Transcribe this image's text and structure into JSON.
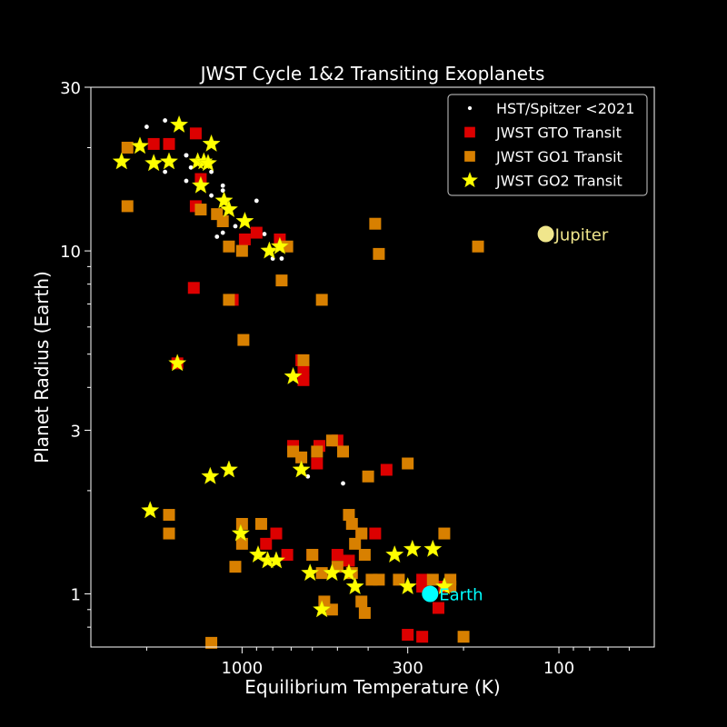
{
  "chart_data": {
    "type": "scatter",
    "title": "JWST Cycle 1&2 Transiting Exoplanets",
    "xlabel": "Equilibrium Temperature (K)",
    "ylabel": "Planet Radius (Earth)",
    "x_scale": "log",
    "x_reversed": true,
    "y_scale": "log",
    "xlim": [
      3000,
      50
    ],
    "ylim": [
      0.7,
      30
    ],
    "x_ticks": [
      1000,
      300,
      100
    ],
    "y_ticks": [
      1,
      3,
      10,
      30
    ],
    "background": "#000000",
    "legend_position": "top-right",
    "grid": false,
    "series": [
      {
        "name": "HST/Spitzer <2021",
        "marker": "point",
        "color": "#ffffff",
        "points": [
          [
            2000,
            23
          ],
          [
            1900,
            21
          ],
          [
            1750,
            24
          ],
          [
            1750,
            17
          ],
          [
            1500,
            19
          ],
          [
            1450,
            17.5
          ],
          [
            1500,
            16
          ],
          [
            1250,
            17
          ],
          [
            1150,
            15.5
          ],
          [
            1500,
            19
          ],
          [
            1050,
            11.8
          ],
          [
            900,
            14
          ],
          [
            1250,
            14.5
          ],
          [
            1200,
            11
          ],
          [
            1150,
            15
          ],
          [
            850,
            11.2
          ],
          [
            800,
            9.5
          ],
          [
            750,
            9.5
          ],
          [
            620,
            2.2
          ],
          [
            480,
            2.1
          ],
          [
            1150,
            11.3
          ]
        ]
      },
      {
        "name": "JWST GTO Transit",
        "marker": "square",
        "color": "#dd0000",
        "points": [
          [
            1400,
            22
          ],
          [
            1400,
            13.5
          ],
          [
            1420,
            7.8
          ],
          [
            1070,
            7.2
          ],
          [
            980,
            10.8
          ],
          [
            900,
            11.3
          ],
          [
            760,
            10.8
          ],
          [
            1350,
            16.2
          ],
          [
            1700,
            20.5
          ],
          [
            1900,
            20.5
          ],
          [
            1600,
            4.7
          ],
          [
            640,
            4.2
          ],
          [
            640,
            4.5
          ],
          [
            650,
            4.8
          ],
          [
            690,
            2.7
          ],
          [
            570,
            2.7
          ],
          [
            580,
            2.4
          ],
          [
            500,
            2.8
          ],
          [
            350,
            2.3
          ],
          [
            380,
            1.5
          ],
          [
            420,
            1.5
          ],
          [
            270,
            1.1
          ],
          [
            230,
            1.05
          ],
          [
            240,
            0.91
          ],
          [
            300,
            0.76
          ],
          [
            270,
            1.05
          ],
          [
            270,
            0.75
          ],
          [
            840,
            1.4
          ],
          [
            780,
            1.5
          ],
          [
            720,
            1.3
          ],
          [
            600,
            1.3
          ],
          [
            500,
            1.3
          ],
          [
            460,
            1.25
          ]
        ]
      },
      {
        "name": "JWST GO1 Transit",
        "marker": "square",
        "color": "#d88000",
        "points": [
          [
            2300,
            20
          ],
          [
            2300,
            13.5
          ],
          [
            1350,
            13.2
          ],
          [
            1200,
            12.8
          ],
          [
            1150,
            12.2
          ],
          [
            1100,
            10.3
          ],
          [
            1000,
            10
          ],
          [
            720,
            10.3
          ],
          [
            750,
            8.2
          ],
          [
            560,
            7.2
          ],
          [
            380,
            12
          ],
          [
            370,
            9.8
          ],
          [
            180,
            10.3
          ],
          [
            1700,
            1.7
          ],
          [
            1700,
            1.5
          ],
          [
            1250,
            0.72
          ],
          [
            1100,
            7.2
          ],
          [
            990,
            5.5
          ],
          [
            1050,
            1.2
          ],
          [
            1000,
            1.6
          ],
          [
            1000,
            1.4
          ],
          [
            870,
            1.6
          ],
          [
            640,
            4.8
          ],
          [
            690,
            2.6
          ],
          [
            580,
            2.6
          ],
          [
            650,
            2.5
          ],
          [
            520,
            2.8
          ],
          [
            480,
            2.6
          ],
          [
            460,
            1.7
          ],
          [
            450,
            1.6
          ],
          [
            440,
            1.4
          ],
          [
            410,
            1.3
          ],
          [
            400,
            2.2
          ],
          [
            390,
            1.1
          ],
          [
            370,
            1.1
          ],
          [
            320,
            1.1
          ],
          [
            300,
            2.4
          ],
          [
            250,
            1.1
          ],
          [
            220,
            1.1
          ],
          [
            220,
            1.05
          ],
          [
            230,
            1.5
          ],
          [
            600,
            1.3
          ],
          [
            560,
            1.15
          ],
          [
            500,
            1.2
          ],
          [
            450,
            1.15
          ],
          [
            420,
            1.5
          ],
          [
            420,
            0.95
          ],
          [
            410,
            0.88
          ],
          [
            550,
            0.95
          ],
          [
            520,
            0.9
          ],
          [
            200,
            0.75
          ]
        ]
      },
      {
        "name": "JWST GO2 Transit",
        "marker": "star",
        "color": "#ffff00",
        "points": [
          [
            2400,
            18.2
          ],
          [
            2100,
            20.2
          ],
          [
            1900,
            18
          ],
          [
            1700,
            18.2
          ],
          [
            1580,
            23.3
          ],
          [
            1380,
            18.2
          ],
          [
            1350,
            15.5
          ],
          [
            1320,
            18.2
          ],
          [
            1280,
            18
          ],
          [
            1250,
            20.5
          ],
          [
            1140,
            14
          ],
          [
            1100,
            13.2
          ],
          [
            980,
            12.2
          ],
          [
            820,
            10
          ],
          [
            760,
            10.3
          ],
          [
            1600,
            4.7
          ],
          [
            1950,
            1.75
          ],
          [
            1260,
            2.2
          ],
          [
            1100,
            2.3
          ],
          [
            1010,
            1.5
          ],
          [
            890,
            1.3
          ],
          [
            830,
            1.25
          ],
          [
            780,
            1.25
          ],
          [
            650,
            2.3
          ],
          [
            610,
            1.15
          ],
          [
            520,
            1.15
          ],
          [
            460,
            1.15
          ],
          [
            440,
            1.05
          ],
          [
            690,
            4.3
          ],
          [
            560,
            0.9
          ],
          [
            330,
            1.3
          ],
          [
            300,
            1.05
          ],
          [
            290,
            1.35
          ],
          [
            250,
            1.35
          ],
          [
            230,
            1.05
          ]
        ]
      }
    ],
    "annotations": [
      {
        "label": "Jupiter",
        "x": 110,
        "y": 11.2,
        "color": "#f0e68c"
      },
      {
        "label": "Earth",
        "x": 255,
        "y": 1.0,
        "color": "#00ffff"
      }
    ]
  }
}
